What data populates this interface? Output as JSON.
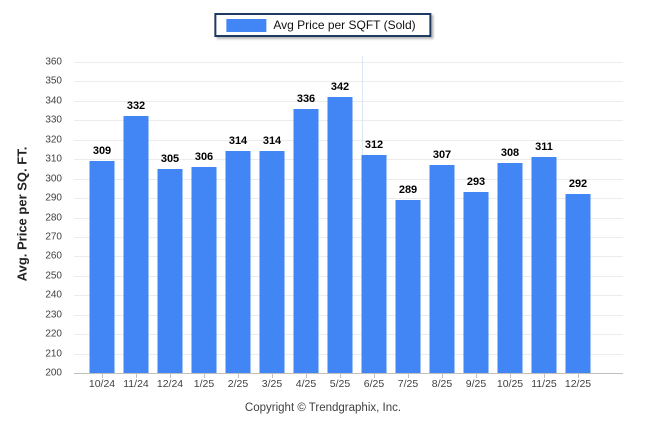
{
  "legend": {
    "label": "Avg Price per SQFT (Sold)"
  },
  "footer": {
    "copyright": "Copyright © Trendgraphix, Inc."
  },
  "chart_data": {
    "type": "bar",
    "title": "",
    "categories": [
      "10/24",
      "11/24",
      "12/24",
      "1/25",
      "2/25",
      "3/25",
      "4/25",
      "5/25",
      "6/25",
      "7/25",
      "8/25",
      "9/25",
      "10/25",
      "11/25",
      "12/25"
    ],
    "values": [
      309,
      332,
      305,
      306,
      314,
      314,
      336,
      342,
      312,
      289,
      307,
      293,
      308,
      311,
      292
    ],
    "ylabel": "Avg. Price per SQ. FT.",
    "xlabel": "",
    "ylim": [
      200,
      360
    ],
    "ytick_step": 10,
    "grid": "horizontal",
    "legend_position": "top-center",
    "series_name": "Avg Price per SQFT (Sold)"
  },
  "colors": {
    "bar": "#4285f4",
    "legend_border": "#1f3a60",
    "gridline": "#ececec",
    "baseline": "#c0c0c0",
    "axis_text": "#404040",
    "value_text": "#000000",
    "crosshair": "#dce6f3"
  }
}
